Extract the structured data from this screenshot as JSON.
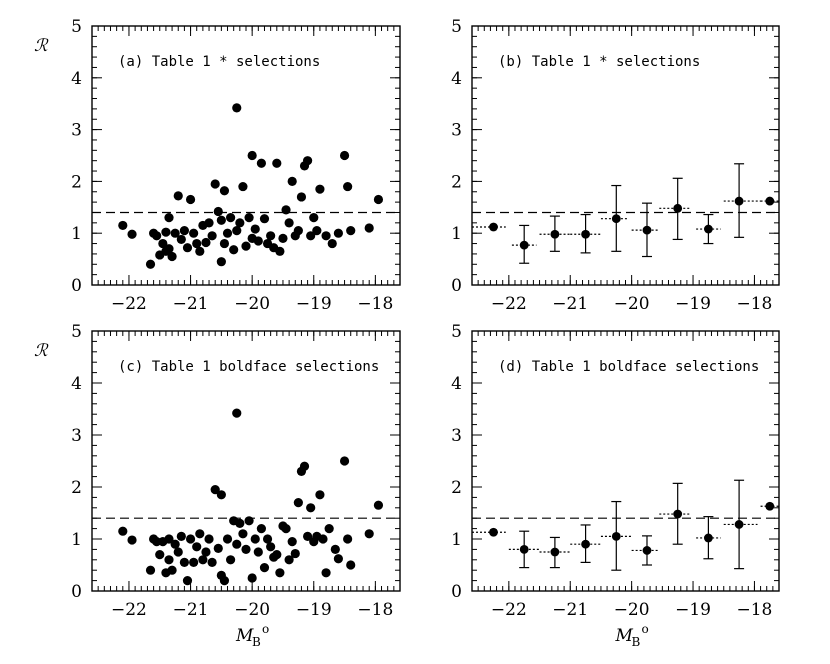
{
  "chart_data": [
    {
      "id": "a",
      "type": "scatter",
      "title": "(a) Table 1 * selections",
      "ylabel": "ℛ",
      "xlabel": "",
      "xlim": [
        -22.6,
        -17.6
      ],
      "ylim": [
        0,
        5
      ],
      "x_ticks": [
        -22,
        -21,
        -20,
        -19,
        -18
      ],
      "y_ticks": [
        0,
        1,
        2,
        3,
        4,
        5
      ],
      "reference_line": 1.4,
      "points": [
        [
          -22.1,
          1.15
        ],
        [
          -21.95,
          0.98
        ],
        [
          -21.65,
          0.4
        ],
        [
          -21.6,
          1.0
        ],
        [
          -21.55,
          0.95
        ],
        [
          -21.5,
          0.58
        ],
        [
          -21.45,
          0.8
        ],
        [
          -21.4,
          1.02
        ],
        [
          -21.4,
          0.65
        ],
        [
          -21.35,
          0.7
        ],
        [
          -21.35,
          1.3
        ],
        [
          -21.3,
          0.55
        ],
        [
          -21.25,
          1.0
        ],
        [
          -21.2,
          1.72
        ],
        [
          -21.15,
          0.88
        ],
        [
          -21.1,
          1.05
        ],
        [
          -21.05,
          0.72
        ],
        [
          -21.0,
          1.65
        ],
        [
          -20.95,
          1.0
        ],
        [
          -20.9,
          0.8
        ],
        [
          -20.85,
          0.65
        ],
        [
          -20.8,
          1.15
        ],
        [
          -20.75,
          0.82
        ],
        [
          -20.7,
          1.2
        ],
        [
          -20.65,
          0.95
        ],
        [
          -20.6,
          1.95
        ],
        [
          -20.55,
          1.42
        ],
        [
          -20.5,
          1.25
        ],
        [
          -20.5,
          0.45
        ],
        [
          -20.45,
          1.82
        ],
        [
          -20.45,
          0.8
        ],
        [
          -20.4,
          1.0
        ],
        [
          -20.35,
          1.3
        ],
        [
          -20.3,
          0.68
        ],
        [
          -20.25,
          1.05
        ],
        [
          -20.25,
          3.42
        ],
        [
          -20.2,
          1.2
        ],
        [
          -20.15,
          1.9
        ],
        [
          -20.1,
          0.75
        ],
        [
          -20.05,
          1.3
        ],
        [
          -20.0,
          0.9
        ],
        [
          -20.0,
          2.5
        ],
        [
          -19.95,
          1.08
        ],
        [
          -19.9,
          0.85
        ],
        [
          -19.85,
          2.35
        ],
        [
          -19.8,
          1.28
        ],
        [
          -19.75,
          0.8
        ],
        [
          -19.7,
          0.95
        ],
        [
          -19.65,
          0.72
        ],
        [
          -19.6,
          2.35
        ],
        [
          -19.55,
          0.65
        ],
        [
          -19.5,
          0.9
        ],
        [
          -19.45,
          1.45
        ],
        [
          -19.4,
          1.2
        ],
        [
          -19.35,
          2.0
        ],
        [
          -19.3,
          0.95
        ],
        [
          -19.25,
          1.05
        ],
        [
          -19.2,
          1.7
        ],
        [
          -19.15,
          2.3
        ],
        [
          -19.1,
          2.4
        ],
        [
          -19.05,
          0.95
        ],
        [
          -19.0,
          1.3
        ],
        [
          -18.95,
          1.05
        ],
        [
          -18.9,
          1.85
        ],
        [
          -18.8,
          0.95
        ],
        [
          -18.7,
          0.8
        ],
        [
          -18.6,
          1.0
        ],
        [
          -18.5,
          2.5
        ],
        [
          -18.45,
          1.9
        ],
        [
          -18.4,
          1.05
        ],
        [
          -18.1,
          1.1
        ],
        [
          -17.95,
          1.65
        ]
      ]
    },
    {
      "id": "b",
      "type": "scatter",
      "title": "(b) Table 1 * selections",
      "ylabel": "",
      "xlabel": "",
      "xlim": [
        -22.6,
        -17.6
      ],
      "ylim": [
        0,
        5
      ],
      "x_ticks": [
        -22,
        -21,
        -20,
        -19,
        -18
      ],
      "y_ticks": [
        0,
        1,
        2,
        3,
        4,
        5
      ],
      "reference_line": 1.4,
      "binned": [
        {
          "x": -22.25,
          "y": 1.12,
          "xlo": -22.6,
          "xhi": -22.05,
          "ylo": null,
          "yhi": null
        },
        {
          "x": -21.75,
          "y": 0.77,
          "xlo": -21.95,
          "xhi": -21.55,
          "ylo": 0.42,
          "yhi": 1.15
        },
        {
          "x": -21.25,
          "y": 0.98,
          "xlo": -21.5,
          "xhi": -21.0,
          "ylo": 0.65,
          "yhi": 1.33
        },
        {
          "x": -20.75,
          "y": 0.98,
          "xlo": -21.0,
          "xhi": -20.5,
          "ylo": 0.62,
          "yhi": 1.36
        },
        {
          "x": -20.25,
          "y": 1.28,
          "xlo": -20.5,
          "xhi": -20.05,
          "ylo": 0.65,
          "yhi": 1.92
        },
        {
          "x": -19.75,
          "y": 1.06,
          "xlo": -20.0,
          "xhi": -19.55,
          "ylo": 0.55,
          "yhi": 1.58
        },
        {
          "x": -19.25,
          "y": 1.48,
          "xlo": -19.55,
          "xhi": -19.05,
          "ylo": 0.88,
          "yhi": 2.06
        },
        {
          "x": -18.75,
          "y": 1.08,
          "xlo": -18.95,
          "xhi": -18.55,
          "ylo": 0.8,
          "yhi": 1.36
        },
        {
          "x": -18.25,
          "y": 1.62,
          "xlo": -18.5,
          "xhi": -17.85,
          "ylo": 0.92,
          "yhi": 2.34
        },
        {
          "x": -17.75,
          "y": 1.62,
          "xlo": -17.9,
          "xhi": -17.6,
          "ylo": null,
          "yhi": null
        }
      ]
    },
    {
      "id": "c",
      "type": "scatter",
      "title": "(c) Table 1 boldface selections",
      "ylabel": "ℛ",
      "xlabel": "M_B^o",
      "xlim": [
        -22.6,
        -17.6
      ],
      "ylim": [
        0,
        5
      ],
      "x_ticks": [
        -22,
        -21,
        -20,
        -19,
        -18
      ],
      "y_ticks": [
        0,
        1,
        2,
        3,
        4,
        5
      ],
      "reference_line": 1.4,
      "points": [
        [
          -22.1,
          1.15
        ],
        [
          -21.95,
          0.98
        ],
        [
          -21.65,
          0.4
        ],
        [
          -21.6,
          1.0
        ],
        [
          -21.55,
          0.95
        ],
        [
          -21.5,
          0.7
        ],
        [
          -21.45,
          0.95
        ],
        [
          -21.4,
          0.35
        ],
        [
          -21.35,
          0.6
        ],
        [
          -21.35,
          1.0
        ],
        [
          -21.3,
          0.4
        ],
        [
          -21.25,
          0.9
        ],
        [
          -21.2,
          0.75
        ],
        [
          -21.15,
          1.05
        ],
        [
          -21.1,
          0.55
        ],
        [
          -21.05,
          0.2
        ],
        [
          -21.0,
          1.0
        ],
        [
          -20.95,
          0.55
        ],
        [
          -20.9,
          0.85
        ],
        [
          -20.85,
          1.1
        ],
        [
          -20.8,
          0.6
        ],
        [
          -20.75,
          0.75
        ],
        [
          -20.7,
          1.0
        ],
        [
          -20.65,
          0.55
        ],
        [
          -20.6,
          1.95
        ],
        [
          -20.55,
          0.82
        ],
        [
          -20.5,
          1.85
        ],
        [
          -20.5,
          0.3
        ],
        [
          -20.45,
          0.2
        ],
        [
          -20.4,
          1.0
        ],
        [
          -20.35,
          0.6
        ],
        [
          -20.3,
          1.35
        ],
        [
          -20.25,
          3.42
        ],
        [
          -20.25,
          0.9
        ],
        [
          -20.2,
          1.3
        ],
        [
          -20.15,
          1.1
        ],
        [
          -20.1,
          0.8
        ],
        [
          -20.05,
          1.35
        ],
        [
          -20.0,
          0.25
        ],
        [
          -19.95,
          1.0
        ],
        [
          -19.9,
          0.75
        ],
        [
          -19.85,
          1.2
        ],
        [
          -19.8,
          0.45
        ],
        [
          -19.75,
          1.0
        ],
        [
          -19.7,
          0.85
        ],
        [
          -19.65,
          0.65
        ],
        [
          -19.6,
          0.7
        ],
        [
          -19.55,
          0.35
        ],
        [
          -19.5,
          1.25
        ],
        [
          -19.45,
          1.2
        ],
        [
          -19.4,
          0.6
        ],
        [
          -19.35,
          0.95
        ],
        [
          -19.3,
          0.72
        ],
        [
          -19.25,
          1.7
        ],
        [
          -19.2,
          2.3
        ],
        [
          -19.15,
          2.4
        ],
        [
          -19.1,
          1.05
        ],
        [
          -19.05,
          1.6
        ],
        [
          -19.0,
          0.95
        ],
        [
          -18.95,
          1.05
        ],
        [
          -18.9,
          1.85
        ],
        [
          -18.85,
          1.0
        ],
        [
          -18.75,
          1.2
        ],
        [
          -18.65,
          0.8
        ],
        [
          -18.6,
          0.62
        ],
        [
          -18.5,
          2.5
        ],
        [
          -18.45,
          1.0
        ],
        [
          -18.4,
          0.5
        ],
        [
          -18.1,
          1.1
        ],
        [
          -17.95,
          1.65
        ],
        [
          -18.8,
          0.35
        ]
      ]
    },
    {
      "id": "d",
      "type": "scatter",
      "title": "(d) Table 1 boldface selections",
      "ylabel": "",
      "xlabel": "M_B^o",
      "xlim": [
        -22.6,
        -17.6
      ],
      "ylim": [
        0,
        5
      ],
      "x_ticks": [
        -22,
        -21,
        -20,
        -19,
        -18
      ],
      "y_ticks": [
        0,
        1,
        2,
        3,
        4,
        5
      ],
      "reference_line": 1.4,
      "binned": [
        {
          "x": -22.25,
          "y": 1.13,
          "xlo": -22.6,
          "xhi": -22.05,
          "ylo": null,
          "yhi": null
        },
        {
          "x": -21.75,
          "y": 0.8,
          "xlo": -22.0,
          "xhi": -21.5,
          "ylo": 0.45,
          "yhi": 1.15
        },
        {
          "x": -21.25,
          "y": 0.75,
          "xlo": -21.5,
          "xhi": -21.0,
          "ylo": 0.45,
          "yhi": 1.03
        },
        {
          "x": -20.75,
          "y": 0.9,
          "xlo": -21.0,
          "xhi": -20.5,
          "ylo": 0.55,
          "yhi": 1.27
        },
        {
          "x": -20.25,
          "y": 1.05,
          "xlo": -20.5,
          "xhi": -20.0,
          "ylo": 0.4,
          "yhi": 1.72
        },
        {
          "x": -19.75,
          "y": 0.78,
          "xlo": -20.0,
          "xhi": -19.55,
          "ylo": 0.5,
          "yhi": 1.06
        },
        {
          "x": -19.25,
          "y": 1.48,
          "xlo": -19.55,
          "xhi": -19.05,
          "ylo": 0.9,
          "yhi": 2.07
        },
        {
          "x": -18.75,
          "y": 1.02,
          "xlo": -18.95,
          "xhi": -18.55,
          "ylo": 0.62,
          "yhi": 1.43
        },
        {
          "x": -18.25,
          "y": 1.28,
          "xlo": -18.5,
          "xhi": -17.95,
          "ylo": 0.43,
          "yhi": 2.13
        },
        {
          "x": -17.75,
          "y": 1.63,
          "xlo": -17.9,
          "xhi": -17.6,
          "ylo": null,
          "yhi": null
        }
      ]
    }
  ]
}
